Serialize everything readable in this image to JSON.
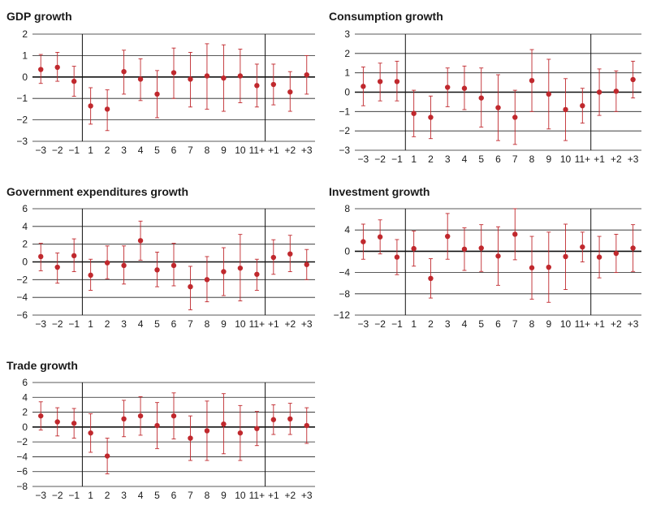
{
  "x_labels": [
    "−3",
    "−2",
    "−1",
    "1",
    "2",
    "3",
    "4",
    "5",
    "6",
    "7",
    "8",
    "9",
    "10",
    "11+",
    "+1",
    "+2",
    "+3"
  ],
  "colors": {
    "marker": "#c0282d",
    "errorbar": "#c0282d",
    "grid": "#222222",
    "axis": "#111111"
  },
  "chart_data": [
    {
      "type": "scatter",
      "title": "GDP growth",
      "categories": [
        "−3",
        "−2",
        "−1",
        "1",
        "2",
        "3",
        "4",
        "5",
        "6",
        "7",
        "8",
        "9",
        "10",
        "11+",
        "+1",
        "+2",
        "+3"
      ],
      "ylim": [
        -3,
        2
      ],
      "yticks": [
        2,
        1,
        0,
        -1,
        -2,
        -3
      ],
      "ytick_labels": [
        "2",
        "1",
        "0",
        "−1",
        "−2",
        "−3"
      ],
      "values": [
        0.35,
        0.45,
        -0.2,
        -1.35,
        -1.5,
        0.25,
        -0.1,
        -0.8,
        0.2,
        -0.1,
        0.05,
        -0.05,
        0.05,
        -0.4,
        -0.35,
        -0.7,
        0.1
      ],
      "lower": [
        -0.3,
        -0.2,
        -0.9,
        -2.2,
        -2.5,
        -0.8,
        -1.1,
        -1.9,
        -1.0,
        -1.4,
        -1.5,
        -1.6,
        -1.2,
        -1.4,
        -1.3,
        -1.6,
        -0.8
      ],
      "upper": [
        1.05,
        1.15,
        0.5,
        -0.5,
        -0.6,
        1.25,
        0.85,
        0.3,
        1.35,
        1.15,
        1.55,
        1.5,
        1.3,
        0.6,
        0.6,
        0.25,
        1.0
      ],
      "vlines_after": [
        "−1",
        "11+"
      ],
      "grid": true
    },
    {
      "type": "scatter",
      "title": "Consumption growth",
      "categories": [
        "−3",
        "−2",
        "−1",
        "1",
        "2",
        "3",
        "4",
        "5",
        "6",
        "7",
        "8",
        "9",
        "10",
        "11+",
        "+1",
        "+2",
        "+3"
      ],
      "ylim": [
        -3,
        3
      ],
      "yticks": [
        3,
        2,
        1,
        0,
        -1,
        -2,
        -3
      ],
      "ytick_labels": [
        "3",
        "2",
        "1",
        "0",
        "−1",
        "−2",
        "−3"
      ],
      "values": [
        0.3,
        0.55,
        0.55,
        -1.1,
        -1.3,
        0.25,
        0.2,
        -0.3,
        -0.8,
        -1.3,
        0.6,
        -0.1,
        -0.9,
        -0.7,
        0.0,
        0.05,
        0.65
      ],
      "lower": [
        -0.7,
        -0.45,
        -0.45,
        -2.3,
        -2.4,
        -0.75,
        -0.9,
        -1.8,
        -2.5,
        -2.7,
        -1.0,
        -1.9,
        -2.5,
        -1.6,
        -1.2,
        -1.0,
        -0.3
      ],
      "upper": [
        1.3,
        1.5,
        1.6,
        0.1,
        -0.2,
        1.25,
        1.35,
        1.25,
        0.9,
        0.1,
        2.2,
        1.7,
        0.7,
        0.2,
        1.2,
        1.1,
        1.6
      ],
      "vlines_after": [
        "−1",
        "11+"
      ],
      "grid": true
    },
    {
      "type": "scatter",
      "title": "Government expenditures growth",
      "categories": [
        "−3",
        "−2",
        "−1",
        "1",
        "2",
        "3",
        "4",
        "5",
        "6",
        "7",
        "8",
        "9",
        "10",
        "11+",
        "+1",
        "+2",
        "+3"
      ],
      "ylim": [
        -6,
        6
      ],
      "yticks": [
        6,
        4,
        2,
        0,
        -2,
        -4,
        -6
      ],
      "ytick_labels": [
        "6",
        "4",
        "2",
        "0",
        "−2",
        "−4",
        "−6"
      ],
      "values": [
        0.6,
        -0.6,
        0.7,
        -1.5,
        -0.1,
        -0.4,
        2.4,
        -0.9,
        -0.4,
        -2.8,
        -2.0,
        -1.1,
        -0.7,
        -1.4,
        0.5,
        0.9,
        -0.3
      ],
      "lower": [
        -1.0,
        -2.4,
        -1.1,
        -3.2,
        -1.9,
        -2.5,
        0.2,
        -2.8,
        -2.7,
        -5.4,
        -4.5,
        -3.8,
        -4.4,
        -3.2,
        -1.4,
        -1.1,
        -2.0
      ],
      "upper": [
        2.1,
        1.0,
        2.6,
        0.3,
        1.8,
        1.8,
        4.6,
        1.1,
        2.1,
        -0.5,
        0.6,
        1.6,
        3.1,
        0.3,
        2.5,
        3.0,
        1.4
      ],
      "vlines_after": [
        "−1",
        "11+"
      ],
      "grid": true
    },
    {
      "type": "scatter",
      "title": "Investment growth",
      "categories": [
        "−3",
        "−2",
        "−1",
        "1",
        "2",
        "3",
        "4",
        "5",
        "6",
        "7",
        "8",
        "9",
        "10",
        "11+",
        "+1",
        "+2",
        "+3"
      ],
      "ylim": [
        -12,
        8
      ],
      "yticks": [
        8,
        4,
        0,
        -4,
        -8,
        -12
      ],
      "ytick_labels": [
        "8",
        "4",
        "0",
        "−4",
        "−8",
        "−12"
      ],
      "values": [
        1.8,
        2.7,
        -1.1,
        0.5,
        -5.1,
        2.8,
        0.4,
        0.6,
        -0.9,
        3.2,
        -3.1,
        -3.0,
        -1.0,
        0.8,
        -1.1,
        -0.4,
        0.6
      ],
      "lower": [
        -1.5,
        -0.5,
        -4.4,
        -2.8,
        -8.8,
        -1.5,
        -3.6,
        -3.8,
        -6.4,
        -1.6,
        -9.0,
        -9.6,
        -7.2,
        -2.0,
        -5.0,
        -4.0,
        -3.8
      ],
      "upper": [
        5.1,
        5.9,
        2.2,
        3.8,
        -1.4,
        7.1,
        4.4,
        5.0,
        4.6,
        8.0,
        2.8,
        3.6,
        5.1,
        3.6,
        2.8,
        3.2,
        5.0
      ],
      "vlines_after": [
        "−1",
        "11+"
      ],
      "grid": true
    },
    {
      "type": "scatter",
      "title": "Trade growth",
      "categories": [
        "−3",
        "−2",
        "−1",
        "1",
        "2",
        "3",
        "4",
        "5",
        "6",
        "7",
        "8",
        "9",
        "10",
        "11+",
        "+1",
        "+2",
        "+3"
      ],
      "ylim": [
        -8,
        6
      ],
      "yticks": [
        6,
        4,
        2,
        0,
        -2,
        -4,
        -6,
        -8
      ],
      "ytick_labels": [
        "6",
        "4",
        "2",
        "0",
        "−2",
        "−4",
        "−6",
        "−8"
      ],
      "values": [
        1.5,
        0.7,
        0.5,
        -0.8,
        -3.9,
        1.1,
        1.5,
        0.2,
        1.5,
        -1.5,
        -0.5,
        0.4,
        -0.8,
        -0.2,
        1.0,
        1.1,
        0.2
      ],
      "lower": [
        -0.4,
        -1.2,
        -1.5,
        -3.4,
        -6.3,
        -1.3,
        -1.1,
        -2.9,
        -1.6,
        -4.5,
        -4.5,
        -3.6,
        -4.5,
        -2.5,
        -1.0,
        -1.0,
        -2.2
      ],
      "upper": [
        3.4,
        2.6,
        2.5,
        1.8,
        -1.5,
        3.6,
        4.1,
        3.3,
        4.6,
        1.5,
        3.5,
        4.5,
        2.9,
        2.1,
        3.0,
        3.2,
        2.6
      ],
      "vlines_after": [
        "−1",
        "11+"
      ],
      "grid": true
    }
  ]
}
